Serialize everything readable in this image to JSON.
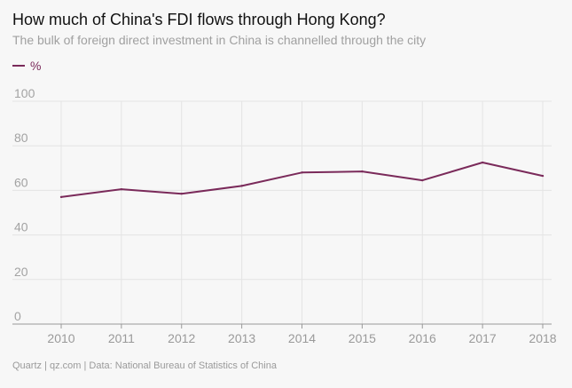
{
  "header": {
    "title": "How much of China's FDI flows through Hong Kong?",
    "subtitle": "The bulk of foreign direct investment in China is channelled through the city"
  },
  "footer": {
    "source": "Quartz | qz.com | Data: National Bureau of Statistics of China"
  },
  "colors": {
    "series": "#7a2a5a",
    "grid": "#e4e4e4",
    "axis": "#999999"
  },
  "chart_data": {
    "type": "line",
    "title": "How much of China's FDI flows through Hong Kong?",
    "subtitle": "The bulk of foreign direct investment in China is channelled through the city",
    "xlabel": "",
    "ylabel": "",
    "x": [
      "2010",
      "2011",
      "2012",
      "2013",
      "2014",
      "2015",
      "2016",
      "2017",
      "2018"
    ],
    "series": [
      {
        "name": "%",
        "color": "#7a2a5a",
        "values": [
          57,
          60.5,
          58.5,
          62,
          68,
          68.5,
          64.5,
          72.5,
          66.5
        ]
      }
    ],
    "yticks": [
      0,
      20,
      40,
      60,
      80,
      100
    ],
    "ylim": [
      0,
      100
    ],
    "grid": true,
    "legend_position": "top-left"
  }
}
